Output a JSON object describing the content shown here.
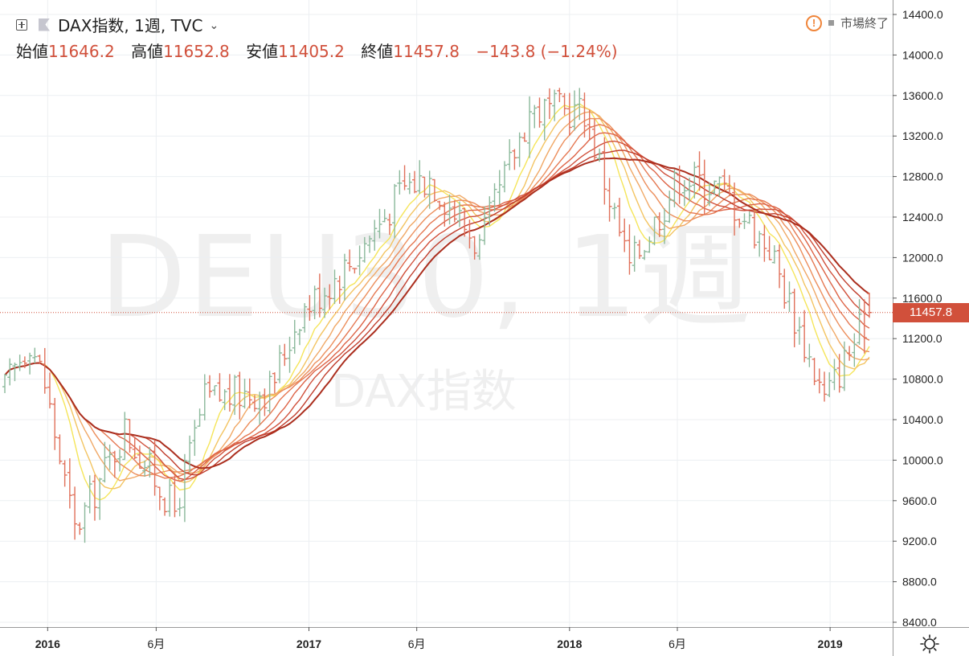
{
  "header": {
    "symbol": "DAX指数, 1週, TVC",
    "ohlc": {
      "open_label": "始値",
      "open": "11646.2",
      "high_label": "高値",
      "high": "11652.8",
      "low_label": "安値",
      "low": "11405.2",
      "close_label": "終値",
      "close": "11457.8",
      "change": "−143.8 (−1.24%)"
    }
  },
  "status": {
    "text": "市場終了",
    "alert_icon": "exclamation-circle-icon",
    "dot_icon": "square-dot-icon"
  },
  "watermark": {
    "main": "DEU30, 1週",
    "sub": "DAX指数"
  },
  "price_tag": "11457.8",
  "colors": {
    "up": "#8ab89a",
    "down": "#e0705a",
    "price_line": "#d1503b",
    "ribbon": [
      "#f5e55a",
      "#f3c462",
      "#f0a866",
      "#ec8e5c",
      "#e57852",
      "#dd6346",
      "#d0503b",
      "#c03d2c",
      "#ab2e1e"
    ]
  },
  "chart_data": {
    "type": "candlestick",
    "ylim": [
      8400,
      14400
    ],
    "yticks": [
      "14400.0",
      "14000.0",
      "13600.0",
      "13200.0",
      "12800.0",
      "12400.0",
      "12000.0",
      "11600.0",
      "11200.0",
      "10800.0",
      "10400.0",
      "10000.0",
      "9600.0",
      "9200.0",
      "8800.0",
      "8400.0"
    ],
    "xlim": [
      "2015-11-02",
      "2019-02-25"
    ],
    "xticks": [
      {
        "date": "2016-01-01",
        "label": "2016",
        "year": true
      },
      {
        "date": "2016-06-01",
        "label": "6月",
        "year": false
      },
      {
        "date": "2017-01-01",
        "label": "2017",
        "year": true
      },
      {
        "date": "2017-06-01",
        "label": "6月",
        "year": false
      },
      {
        "date": "2018-01-01",
        "label": "2018",
        "year": true
      },
      {
        "date": "2018-06-01",
        "label": "6月",
        "year": false
      },
      {
        "date": "2019-01-01",
        "label": "2019",
        "year": true
      }
    ],
    "last_price": 11457.8,
    "anchors": [
      [
        "2015-11-02",
        10700
      ],
      [
        "2015-12-07",
        11200
      ],
      [
        "2015-12-28",
        10750
      ],
      [
        "2016-02-08",
        9300
      ],
      [
        "2016-04-18",
        10300
      ],
      [
        "2016-06-27",
        9500
      ],
      [
        "2016-08-08",
        10600
      ],
      [
        "2016-11-07",
        10700
      ],
      [
        "2016-12-19",
        11450
      ],
      [
        "2017-03-06",
        12000
      ],
      [
        "2017-05-15",
        12700
      ],
      [
        "2017-06-19",
        12800
      ],
      [
        "2017-08-28",
        12100
      ],
      [
        "2017-11-06",
        13450
      ],
      [
        "2018-01-22",
        13450
      ],
      [
        "2018-03-26",
        11900
      ],
      [
        "2018-06-04",
        12800
      ],
      [
        "2018-07-30",
        12700
      ],
      [
        "2018-10-08",
        12100
      ],
      [
        "2018-12-24",
        10600
      ],
      [
        "2019-02-25",
        11457.8
      ]
    ],
    "ma_periods": [
      8,
      11,
      14,
      17,
      20,
      23,
      26,
      29,
      32
    ],
    "xlabel": "",
    "ylabel": "",
    "grid": true,
    "legend": "top-left"
  }
}
